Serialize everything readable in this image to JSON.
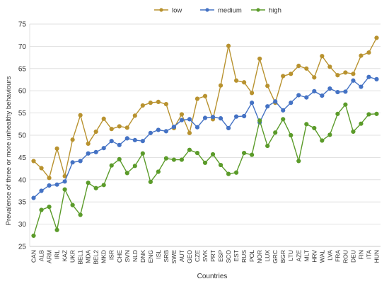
{
  "chart_data": {
    "type": "line",
    "title": "",
    "xlabel": "Countries",
    "ylabel": "Prevalence of three or more unhealthy behaviours",
    "ylim": [
      25,
      75
    ],
    "yticks": [
      25,
      30,
      35,
      40,
      45,
      50,
      55,
      60,
      65,
      70,
      75
    ],
    "grid": true,
    "legend_position": "top-center",
    "categories": [
      "CAN",
      "ALB",
      "ARM",
      "IRL",
      "KAZ",
      "UKR",
      "BEL1",
      "MDA",
      "BEL2",
      "MKD",
      "ISR",
      "CHE",
      "SVN",
      "NLD",
      "DNK",
      "ENG",
      "ISL",
      "SRB",
      "SWE",
      "AUT",
      "GEO",
      "CZE",
      "SVK",
      "PRT",
      "ESP",
      "SCO",
      "EST",
      "RUS",
      "POL",
      "NOR",
      "LUX",
      "GRC",
      "BGR",
      "LTU",
      "AZE",
      "MLT",
      "HRV",
      "WAL",
      "LVA",
      "FRA",
      "ROU",
      "DEU",
      "FIN",
      "ITA",
      "HUN"
    ],
    "series": [
      {
        "name": "low",
        "color": "#b8922f",
        "values": [
          44.2,
          42.6,
          40.4,
          47.0,
          40.8,
          49.0,
          54.5,
          48.1,
          50.8,
          53.7,
          51.4,
          52.0,
          51.7,
          54.4,
          56.7,
          57.3,
          57.5,
          57.0,
          51.6,
          54.7,
          50.5,
          58.2,
          58.8,
          53.6,
          61.2,
          70.1,
          62.3,
          61.9,
          59.5,
          67.2,
          61.1,
          57.3,
          63.3,
          63.8,
          65.6,
          65.0,
          63.0,
          67.8,
          65.4,
          63.5,
          64.1,
          63.8,
          67.9,
          68.6,
          71.9
        ]
      },
      {
        "name": "medium",
        "color": "#4472c4",
        "values": [
          35.9,
          37.5,
          38.7,
          38.9,
          39.6,
          43.9,
          44.2,
          45.9,
          46.2,
          47.1,
          48.7,
          47.8,
          49.3,
          48.9,
          48.7,
          50.5,
          51.2,
          50.9,
          51.9,
          53.4,
          53.6,
          51.8,
          53.9,
          54.1,
          53.8,
          51.6,
          54.2,
          54.3,
          57.3,
          52.9,
          56.5,
          57.6,
          55.6,
          57.3,
          59.0,
          58.5,
          59.9,
          58.9,
          60.5,
          59.7,
          59.8,
          62.3,
          60.9,
          63.1,
          62.6
        ]
      },
      {
        "name": "high",
        "color": "#5b9b2a",
        "values": [
          27.4,
          33.2,
          33.9,
          28.7,
          37.8,
          34.3,
          32.1,
          39.3,
          38.1,
          38.8,
          43.2,
          44.6,
          41.5,
          43.1,
          45.9,
          39.5,
          41.8,
          44.8,
          44.5,
          44.5,
          46.7,
          46.0,
          43.8,
          45.7,
          43.3,
          41.3,
          41.6,
          46.0,
          45.6,
          53.3,
          47.6,
          50.6,
          53.6,
          50.0,
          44.2,
          52.5,
          51.6,
          48.8,
          50.1,
          54.8,
          56.9,
          50.8,
          52.6,
          54.7,
          54.8
        ]
      }
    ]
  }
}
